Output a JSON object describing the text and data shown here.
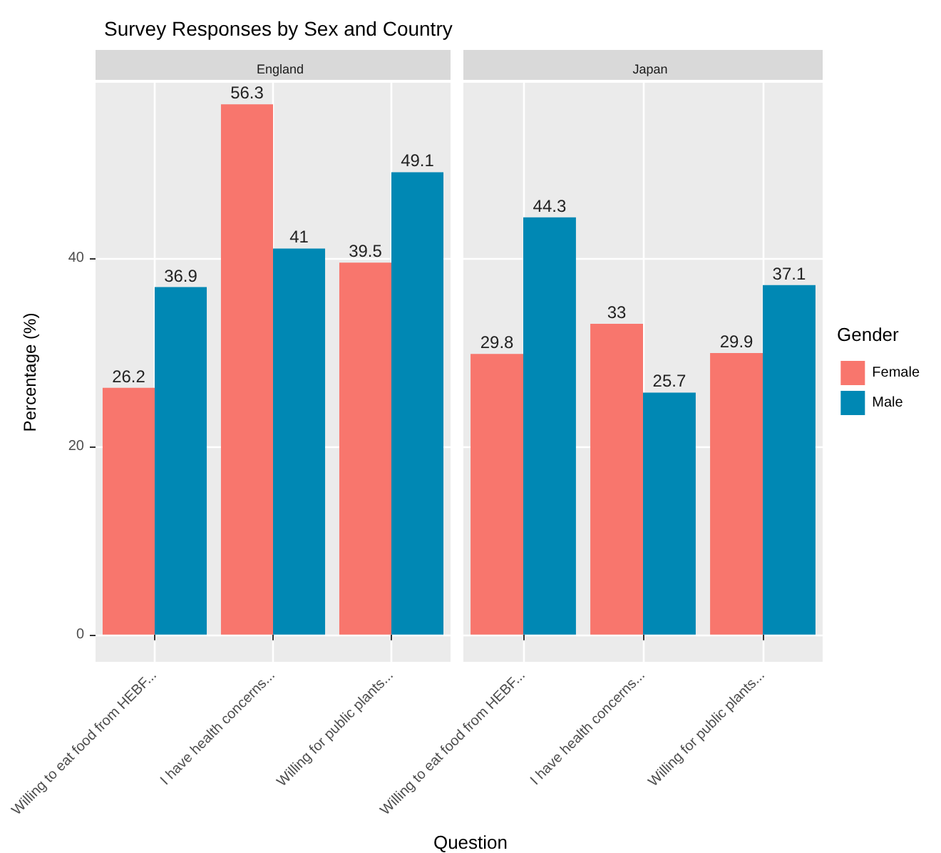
{
  "chart_data": [
    {
      "type": "bar",
      "title": "Survey Responses by Sex and Country",
      "subtitle": "England",
      "xlabel": "Question",
      "ylabel": "Percentage (%)",
      "categories": [
        "Willing to eat food from HEBF...",
        "I have health concerns...",
        "Willing for public plants..."
      ],
      "series": [
        {
          "color": "#f8766d",
          "values": [
            26.2,
            56.3,
            39.5
          ]
        },
        {
          "color": "#0088b4",
          "values": [
            36.9,
            41,
            49.1
          ]
        }
      ],
      "ylim": [
        -2.9,
        58.6
      ],
      "yticks": [
        0,
        20,
        40
      ],
      "grid": true,
      "data_labels": true,
      "legend": false
    },
    {
      "type": "bar",
      "subtitle": "Japan",
      "legend_title": "Gender",
      "categories": [
        "Willing to eat food from HEBF...",
        "I have health concerns...",
        "Willing for public plants..."
      ],
      "series": [
        {
          "name": "Female",
          "color": "#f8766d",
          "values": [
            29.8,
            33,
            29.9
          ]
        },
        {
          "name": "Male",
          "color": "#0088b4",
          "values": [
            44.3,
            25.7,
            37.1
          ]
        }
      ],
      "ylim": [
        -2.9,
        58.6
      ],
      "yticks": [
        0,
        20,
        40
      ],
      "tick_labels": "x",
      "grid": true,
      "data_labels": true,
      "legend": "right"
    }
  ]
}
